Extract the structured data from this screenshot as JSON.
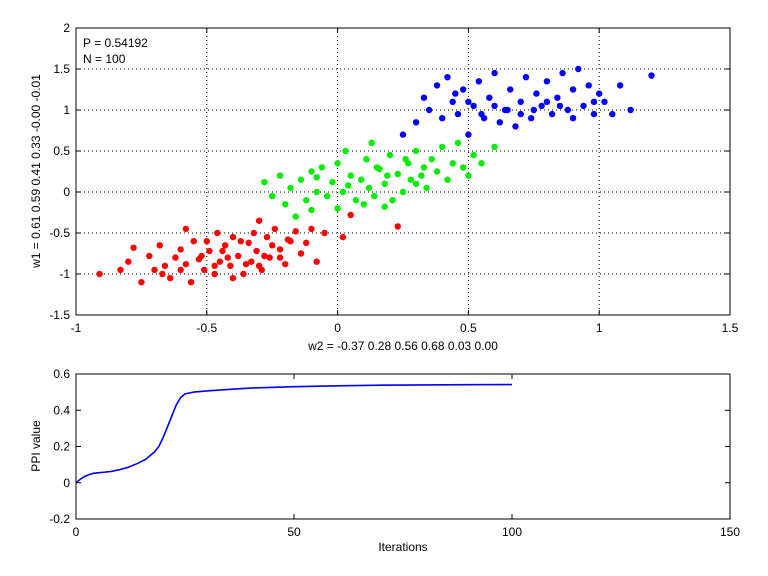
{
  "chart_data": [
    {
      "type": "scatter",
      "xlabel": "w2 = -0.37  0.28  0.56  0.68  0.03  0.00",
      "ylabel": "w1 = 0.61  0.59  0.41  0.33  -0.00  -0.01",
      "xlim": [
        -1,
        1.5
      ],
      "ylim": [
        -1.5,
        2
      ],
      "xticks": [
        -1,
        -0.5,
        0,
        0.5,
        1,
        1.5
      ],
      "yticks": [
        -1.5,
        -1,
        -0.5,
        0,
        0.5,
        1,
        1.5,
        2
      ],
      "xtick_labels": [
        "-1",
        "-0.5",
        "0",
        "0.5",
        "1",
        "1.5"
      ],
      "ytick_labels": [
        "-1.5",
        "-1",
        "-0.5",
        "0",
        "0.5",
        "1",
        "1.5",
        "2"
      ],
      "grid": true,
      "annotations": [
        "P = 0.54192",
        "N = 100"
      ],
      "clusters": [
        {
          "color": "#ff0000",
          "points": [
            [
              -0.91,
              -1.0
            ],
            [
              -0.83,
              -0.95
            ],
            [
              -0.8,
              -0.85
            ],
            [
              -0.78,
              -0.68
            ],
            [
              -0.75,
              -1.1
            ],
            [
              -0.72,
              -0.78
            ],
            [
              -0.7,
              -0.95
            ],
            [
              -0.68,
              -0.65
            ],
            [
              -0.66,
              -0.9
            ],
            [
              -0.64,
              -1.05
            ],
            [
              -0.62,
              -0.8
            ],
            [
              -0.6,
              -0.7
            ],
            [
              -0.58,
              -0.88
            ],
            [
              -0.56,
              -1.1
            ],
            [
              -0.55,
              -0.6
            ],
            [
              -0.53,
              -0.82
            ],
            [
              -0.51,
              -0.95
            ],
            [
              -0.49,
              -0.72
            ],
            [
              -0.47,
              -1.0
            ],
            [
              -0.45,
              -0.85
            ],
            [
              -0.43,
              -0.65
            ],
            [
              -0.41,
              -0.9
            ],
            [
              -0.4,
              -0.55
            ],
            [
              -0.38,
              -0.78
            ],
            [
              -0.36,
              -1.0
            ],
            [
              -0.34,
              -0.62
            ],
            [
              -0.33,
              -0.85
            ],
            [
              -0.31,
              -0.72
            ],
            [
              -0.29,
              -0.95
            ],
            [
              -0.27,
              -0.55
            ],
            [
              -0.26,
              -0.8
            ],
            [
              -0.24,
              -0.45
            ],
            [
              -0.22,
              -0.7
            ],
            [
              -0.2,
              -0.88
            ],
            [
              -0.18,
              -0.6
            ],
            [
              -0.16,
              -0.48
            ],
            [
              -0.14,
              -0.75
            ],
            [
              -0.12,
              -0.62
            ],
            [
              -0.1,
              -0.45
            ],
            [
              -0.08,
              -0.85
            ],
            [
              -0.05,
              -0.5
            ],
            [
              -0.3,
              -0.35
            ],
            [
              -0.46,
              -0.5
            ],
            [
              -0.58,
              -0.45
            ],
            [
              -0.5,
              -0.6
            ],
            [
              -0.44,
              -0.72
            ],
            [
              -0.37,
              -0.6
            ],
            [
              -0.32,
              -0.5
            ],
            [
              -0.25,
              -0.65
            ],
            [
              -0.19,
              -0.58
            ],
            [
              -0.52,
              -0.78
            ],
            [
              -0.47,
              -0.9
            ],
            [
              -0.42,
              -0.8
            ],
            [
              -0.35,
              -0.88
            ],
            [
              -0.28,
              -0.78
            ],
            [
              -0.6,
              -0.95
            ],
            [
              -0.67,
              -1.0
            ],
            [
              -0.4,
              -1.05
            ],
            [
              -0.3,
              -0.9
            ],
            [
              -0.22,
              -0.8
            ],
            [
              0.05,
              -0.28
            ],
            [
              0.02,
              -0.55
            ],
            [
              0.23,
              -0.42
            ]
          ]
        },
        {
          "color": "#00ee00",
          "points": [
            [
              -0.28,
              0.12
            ],
            [
              -0.25,
              -0.05
            ],
            [
              -0.22,
              0.2
            ],
            [
              -0.2,
              -0.15
            ],
            [
              -0.18,
              0.05
            ],
            [
              -0.16,
              -0.3
            ],
            [
              -0.14,
              0.15
            ],
            [
              -0.12,
              -0.1
            ],
            [
              -0.1,
              0.25
            ],
            [
              -0.08,
              0.0
            ],
            [
              -0.06,
              0.3
            ],
            [
              -0.04,
              -0.05
            ],
            [
              -0.02,
              0.12
            ],
            [
              0.0,
              0.35
            ],
            [
              0.02,
              0.0
            ],
            [
              0.03,
              0.5
            ],
            [
              0.05,
              0.2
            ],
            [
              0.07,
              -0.1
            ],
            [
              0.09,
              0.15
            ],
            [
              0.11,
              0.4
            ],
            [
              0.12,
              0.05
            ],
            [
              0.14,
              -0.05
            ],
            [
              0.16,
              0.28
            ],
            [
              0.18,
              0.1
            ],
            [
              0.2,
              0.45
            ],
            [
              0.21,
              -0.1
            ],
            [
              0.23,
              0.22
            ],
            [
              0.25,
              0.0
            ],
            [
              0.27,
              0.35
            ],
            [
              0.28,
              0.15
            ],
            [
              0.3,
              0.5
            ],
            [
              0.32,
              0.2
            ],
            [
              0.34,
              0.05
            ],
            [
              0.36,
              0.4
            ],
            [
              0.38,
              0.25
            ],
            [
              0.4,
              0.55
            ],
            [
              0.42,
              0.15
            ],
            [
              0.44,
              0.35
            ],
            [
              0.46,
              0.6
            ],
            [
              0.48,
              0.3
            ],
            [
              0.5,
              0.2
            ],
            [
              0.52,
              0.45
            ],
            [
              0.55,
              0.35
            ],
            [
              0.6,
              0.55
            ],
            [
              -0.08,
              0.18
            ],
            [
              0.04,
              0.08
            ],
            [
              0.15,
              0.3
            ],
            [
              0.26,
              0.4
            ],
            [
              0.33,
              0.3
            ],
            [
              0.1,
              -0.15
            ],
            [
              0.18,
              -0.18
            ],
            [
              -0.1,
              -0.22
            ],
            [
              0.0,
              -0.2
            ],
            [
              0.13,
              0.6
            ],
            [
              0.3,
              0.1
            ],
            [
              0.19,
              0.2
            ]
          ]
        },
        {
          "color": "#0000ff",
          "points": [
            [
              0.25,
              0.7
            ],
            [
              0.3,
              0.85
            ],
            [
              0.33,
              1.15
            ],
            [
              0.35,
              1.0
            ],
            [
              0.38,
              1.3
            ],
            [
              0.4,
              0.9
            ],
            [
              0.42,
              1.4
            ],
            [
              0.44,
              1.1
            ],
            [
              0.46,
              0.95
            ],
            [
              0.48,
              1.25
            ],
            [
              0.5,
              0.7
            ],
            [
              0.52,
              1.05
            ],
            [
              0.54,
              1.35
            ],
            [
              0.56,
              0.9
            ],
            [
              0.58,
              1.15
            ],
            [
              0.6,
              1.45
            ],
            [
              0.62,
              0.85
            ],
            [
              0.64,
              1.0
            ],
            [
              0.66,
              1.25
            ],
            [
              0.68,
              0.8
            ],
            [
              0.7,
              1.1
            ],
            [
              0.72,
              1.4
            ],
            [
              0.74,
              0.9
            ],
            [
              0.76,
              1.2
            ],
            [
              0.78,
              1.05
            ],
            [
              0.8,
              1.35
            ],
            [
              0.82,
              0.95
            ],
            [
              0.84,
              1.15
            ],
            [
              0.86,
              1.45
            ],
            [
              0.88,
              1.0
            ],
            [
              0.9,
              1.25
            ],
            [
              0.92,
              1.5
            ],
            [
              0.94,
              1.05
            ],
            [
              0.96,
              1.3
            ],
            [
              0.98,
              1.1
            ],
            [
              1.0,
              1.2
            ],
            [
              1.05,
              0.95
            ],
            [
              1.08,
              1.3
            ],
            [
              1.12,
              1.0
            ],
            [
              1.2,
              1.42
            ],
            [
              0.45,
              1.2
            ],
            [
              0.55,
              0.95
            ],
            [
              0.65,
              1.0
            ],
            [
              0.75,
              1.0
            ],
            [
              0.85,
              1.05
            ],
            [
              0.7,
              0.95
            ],
            [
              0.6,
              1.05
            ],
            [
              0.9,
              0.9
            ],
            [
              0.8,
              1.1
            ],
            [
              0.5,
              1.1
            ],
            [
              0.98,
              0.95
            ],
            [
              1.02,
              1.1
            ]
          ]
        }
      ]
    },
    {
      "type": "line",
      "xlabel": "Iterations",
      "ylabel": "PPI value",
      "xlim": [
        0,
        150
      ],
      "ylim": [
        -0.2,
        0.6
      ],
      "xticks": [
        0,
        50,
        100,
        150
      ],
      "yticks": [
        -0.2,
        0,
        0.2,
        0.4,
        0.6
      ],
      "xtick_labels": [
        "0",
        "50",
        "100",
        "150"
      ],
      "ytick_labels": [
        "-0.2",
        "0",
        "0.2",
        "0.4",
        "0.6"
      ],
      "grid": false,
      "color": "#0000ff",
      "x": [
        0,
        1,
        2,
        3,
        4,
        5,
        8,
        10,
        12,
        14,
        16,
        18,
        19,
        20,
        21,
        22,
        23,
        24,
        25,
        26,
        27,
        30,
        35,
        40,
        50,
        60,
        70,
        80,
        90,
        100
      ],
      "y": [
        0.0,
        0.02,
        0.035,
        0.045,
        0.052,
        0.055,
        0.062,
        0.072,
        0.085,
        0.105,
        0.13,
        0.17,
        0.2,
        0.25,
        0.31,
        0.37,
        0.43,
        0.47,
        0.49,
        0.495,
        0.5,
        0.507,
        0.515,
        0.522,
        0.53,
        0.535,
        0.538,
        0.54,
        0.541,
        0.542
      ]
    }
  ]
}
